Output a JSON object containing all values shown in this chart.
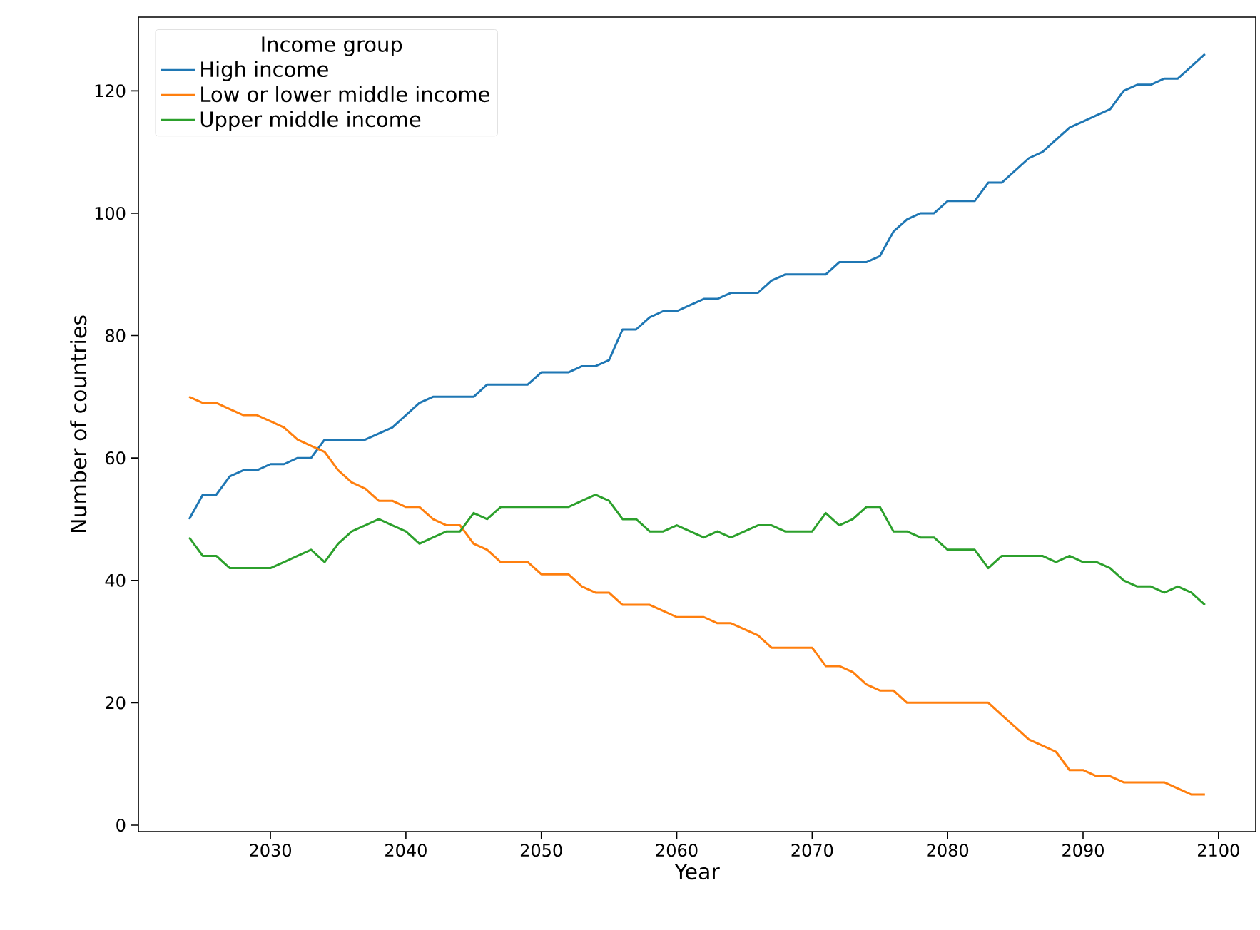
{
  "chart_data": {
    "type": "line",
    "xlabel": "Year",
    "ylabel": "Number of countries",
    "legend_title": "Income group",
    "legend": "top left",
    "grid": false,
    "xlim": [
      2020.25,
      2102.75
    ],
    "ylim": [
      -1.05,
      132.05
    ],
    "xticks": [
      2030,
      2040,
      2050,
      2060,
      2070,
      2080,
      2090,
      2100
    ],
    "yticks": [
      0,
      20,
      40,
      60,
      80,
      100,
      120
    ],
    "x": [
      2024,
      2025,
      2026,
      2027,
      2028,
      2029,
      2030,
      2031,
      2032,
      2033,
      2034,
      2035,
      2036,
      2037,
      2038,
      2039,
      2040,
      2041,
      2042,
      2043,
      2044,
      2045,
      2046,
      2047,
      2048,
      2049,
      2050,
      2051,
      2052,
      2053,
      2054,
      2055,
      2056,
      2057,
      2058,
      2059,
      2060,
      2061,
      2062,
      2063,
      2064,
      2065,
      2066,
      2067,
      2068,
      2069,
      2070,
      2071,
      2072,
      2073,
      2074,
      2075,
      2076,
      2077,
      2078,
      2079,
      2080,
      2081,
      2082,
      2083,
      2084,
      2085,
      2086,
      2087,
      2088,
      2089,
      2090,
      2091,
      2092,
      2093,
      2094,
      2095,
      2096,
      2097,
      2098,
      2099
    ],
    "series": [
      {
        "name": "High income",
        "color": "#1f77b4",
        "values": [
          50,
          54,
          54,
          57,
          58,
          58,
          59,
          59,
          60,
          60,
          63,
          63,
          63,
          63,
          64,
          65,
          67,
          69,
          70,
          70,
          70,
          70,
          72,
          72,
          72,
          72,
          74,
          74,
          74,
          75,
          75,
          76,
          81,
          81,
          83,
          84,
          84,
          85,
          86,
          86,
          87,
          87,
          87,
          89,
          90,
          90,
          90,
          90,
          92,
          92,
          92,
          93,
          97,
          99,
          100,
          100,
          102,
          102,
          102,
          105,
          105,
          107,
          109,
          110,
          112,
          114,
          115,
          116,
          117,
          120,
          121,
          121,
          122,
          122,
          124,
          126
        ]
      },
      {
        "name": "Low or lower middle income",
        "color": "#ff7f0e",
        "values": [
          70,
          69,
          69,
          68,
          67,
          67,
          66,
          65,
          63,
          62,
          61,
          58,
          56,
          55,
          53,
          53,
          52,
          52,
          50,
          49,
          49,
          46,
          45,
          43,
          43,
          43,
          41,
          41,
          41,
          39,
          38,
          38,
          36,
          36,
          36,
          35,
          34,
          34,
          34,
          33,
          33,
          32,
          31,
          29,
          29,
          29,
          29,
          26,
          26,
          25,
          23,
          22,
          22,
          20,
          20,
          20,
          20,
          20,
          20,
          20,
          18,
          16,
          14,
          13,
          12,
          9,
          9,
          8,
          8,
          7,
          7,
          7,
          7,
          6,
          5,
          5
        ]
      },
      {
        "name": "Upper middle income",
        "color": "#2ca02c",
        "values": [
          47,
          44,
          44,
          42,
          42,
          42,
          42,
          43,
          44,
          45,
          43,
          46,
          48,
          49,
          50,
          49,
          48,
          46,
          47,
          48,
          48,
          51,
          50,
          52,
          52,
          52,
          52,
          52,
          52,
          53,
          54,
          53,
          50,
          50,
          48,
          48,
          49,
          48,
          47,
          48,
          47,
          48,
          49,
          49,
          48,
          48,
          48,
          51,
          49,
          50,
          52,
          52,
          48,
          48,
          47,
          47,
          45,
          45,
          45,
          42,
          44,
          44,
          44,
          44,
          43,
          44,
          43,
          43,
          42,
          40,
          39,
          39,
          38,
          39,
          38,
          36
        ]
      }
    ]
  }
}
